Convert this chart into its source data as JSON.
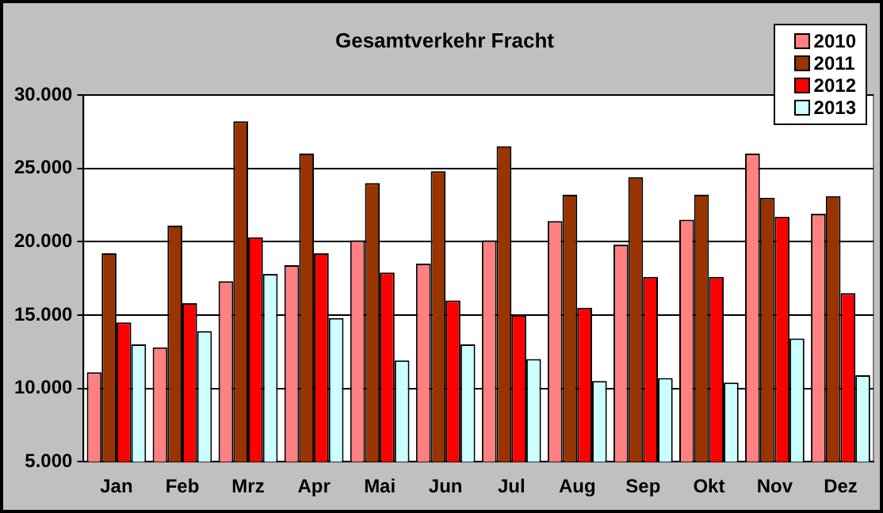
{
  "chart_data": {
    "type": "bar",
    "title": "Gesamtverkehr  Fracht",
    "categories": [
      "Jan",
      "Feb",
      "Mrz",
      "Apr",
      "Mai",
      "Jun",
      "Jul",
      "Aug",
      "Sep",
      "Okt",
      "Nov",
      "Dez"
    ],
    "series": [
      {
        "name": "2010",
        "color": "#ff8080",
        "values": [
          11100,
          12800,
          17300,
          18400,
          20100,
          18500,
          20100,
          21400,
          19800,
          21500,
          26000,
          21900
        ]
      },
      {
        "name": "2011",
        "color": "#993300",
        "values": [
          19200,
          21100,
          28200,
          26000,
          24000,
          24800,
          26500,
          23200,
          24400,
          23200,
          23000,
          23100
        ]
      },
      {
        "name": "2012",
        "color": "#ff0000",
        "values": [
          14500,
          15800,
          20300,
          19200,
          17900,
          16000,
          15000,
          15500,
          17600,
          17600,
          21700,
          16500
        ]
      },
      {
        "name": "2013",
        "color": "#ccffff",
        "values": [
          13000,
          13900,
          17800,
          14800,
          11900,
          13000,
          12000,
          10500,
          10700,
          10400,
          13400,
          10900
        ]
      }
    ],
    "ylim": [
      5000,
      30000
    ],
    "yticks": [
      {
        "value": 5000,
        "label": "5.000"
      },
      {
        "value": 10000,
        "label": "10.000"
      },
      {
        "value": 15000,
        "label": "15.000"
      },
      {
        "value": 20000,
        "label": "20.000"
      },
      {
        "value": 25000,
        "label": "25.000"
      },
      {
        "value": 30000,
        "label": "30.000"
      }
    ],
    "grid": "y",
    "legend": "top right"
  }
}
